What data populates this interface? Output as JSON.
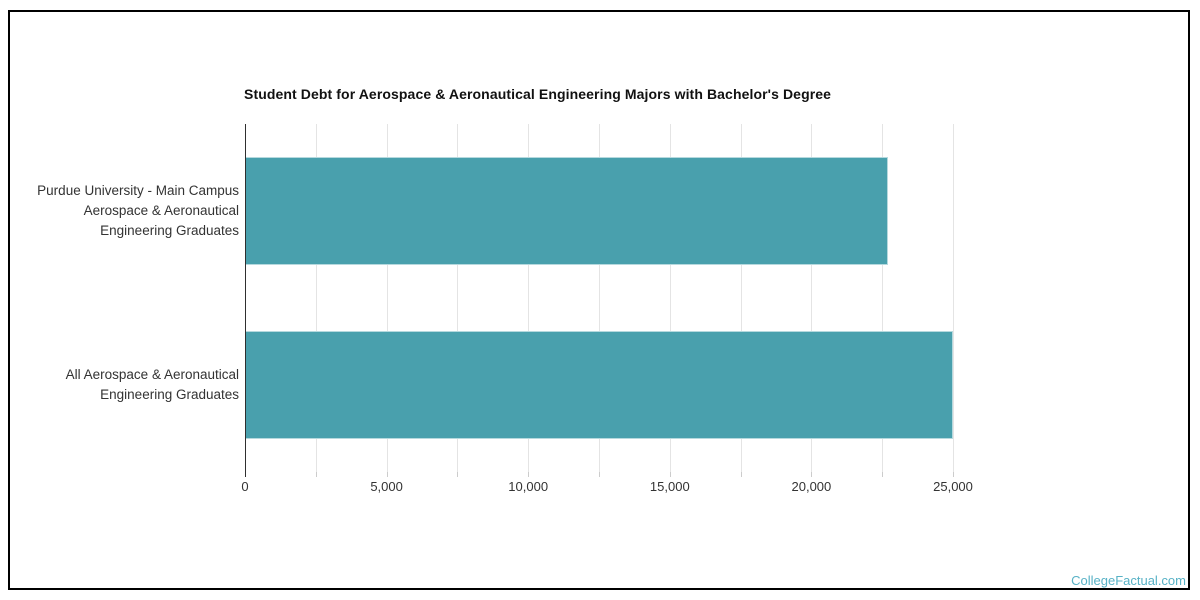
{
  "chart_data": {
    "type": "bar",
    "orientation": "horizontal",
    "title": "Student Debt for Aerospace & Aeronautical Engineering Majors with Bachelor's Degree",
    "categories": [
      "Purdue University - Main Campus Aerospace & Aeronautical Engineering Graduates",
      "All Aerospace & Aeronautical Engineering Graduates"
    ],
    "category_label_lines": [
      [
        "Purdue University - Main Campus",
        "Aerospace & Aeronautical",
        "Engineering Graduates"
      ],
      [
        "All Aerospace & Aeronautical",
        "Engineering Graduates"
      ]
    ],
    "values": [
      22700,
      25000
    ],
    "xlabel": "",
    "ylabel": "",
    "xlim": [
      0,
      25000
    ],
    "x_ticks": [
      0,
      5000,
      10000,
      15000,
      20000,
      25000
    ],
    "x_tick_labels": [
      "0",
      "5,000",
      "10,000",
      "15,000",
      "20,000",
      "25,000"
    ],
    "minor_tick_interval": 2500,
    "grid": true,
    "legend": false,
    "bar_color": "#49a0ad",
    "gridline_color": "#e4e4e4",
    "axis_line_color": "#2f2f2f",
    "text_color": "#333333",
    "title_color": "#111111"
  },
  "watermark": {
    "label": "CollegeFactual.com",
    "color": "#58b2c6"
  },
  "frame": {
    "border_color": "#000000"
  }
}
